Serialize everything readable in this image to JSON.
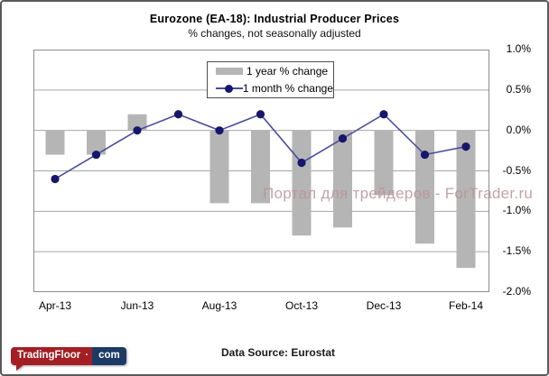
{
  "figure": {
    "title": "Eurozone (EA-18): Industrial Producer Prices",
    "subtitle": "% changes,  not seasonally  adjusted",
    "watermark": "Портал для трейдеров - ForTrader.ru",
    "footer": {
      "source_label": "Data Source: Eurostat",
      "logo_brand": "TradingFloor",
      "logo_separator": "·",
      "logo_tld": "com"
    }
  },
  "chart_data": {
    "type": "bar",
    "subtype": "bar-and-line-combo",
    "title": "Eurozone (EA-18): Industrial Producer Prices",
    "subtitle": "% changes, not seasonally adjusted",
    "categories": [
      "Apr-13",
      "May-13",
      "Jun-13",
      "Jul-13",
      "Aug-13",
      "Sep-13",
      "Oct-13",
      "Nov-13",
      "Dec-13",
      "Jan-14",
      "Feb-14"
    ],
    "series": [
      {
        "name": "1 year % change",
        "type": "bar",
        "color": "#b5b5b5",
        "values": [
          -0.3,
          -0.3,
          0.2,
          0.0,
          -0.9,
          -0.9,
          -1.3,
          -1.2,
          -0.8,
          -1.4,
          -1.7
        ]
      },
      {
        "name": "1 month % change",
        "type": "line",
        "color": "#4a4d9e",
        "marker_color": "#16166b",
        "values": [
          -0.6,
          -0.3,
          0.0,
          0.2,
          0.0,
          0.2,
          -0.4,
          -0.1,
          0.2,
          -0.3,
          -0.2
        ]
      }
    ],
    "ylim": [
      -2.0,
      1.0
    ],
    "y_ticks": [
      "1.0%",
      "0.5%",
      "0.0%",
      "-0.5%",
      "-1.0%",
      "-1.5%",
      "-2.0%"
    ],
    "y_tick_values": [
      1.0,
      0.5,
      0.0,
      -0.5,
      -1.0,
      -1.5,
      -2.0
    ],
    "x_tick_labels": [
      "Apr-13",
      "Jun-13",
      "Aug-13",
      "Oct-13",
      "Dec-13",
      "Feb-14"
    ],
    "x_tick_indices": [
      0,
      2,
      4,
      6,
      8,
      10
    ],
    "grid": true,
    "grid_color": "#a6a6a6",
    "plot_border_color": "#8c8c8c",
    "legend_position": "top-center",
    "y_axis_side": "right",
    "xlabel": "",
    "ylabel": ""
  }
}
